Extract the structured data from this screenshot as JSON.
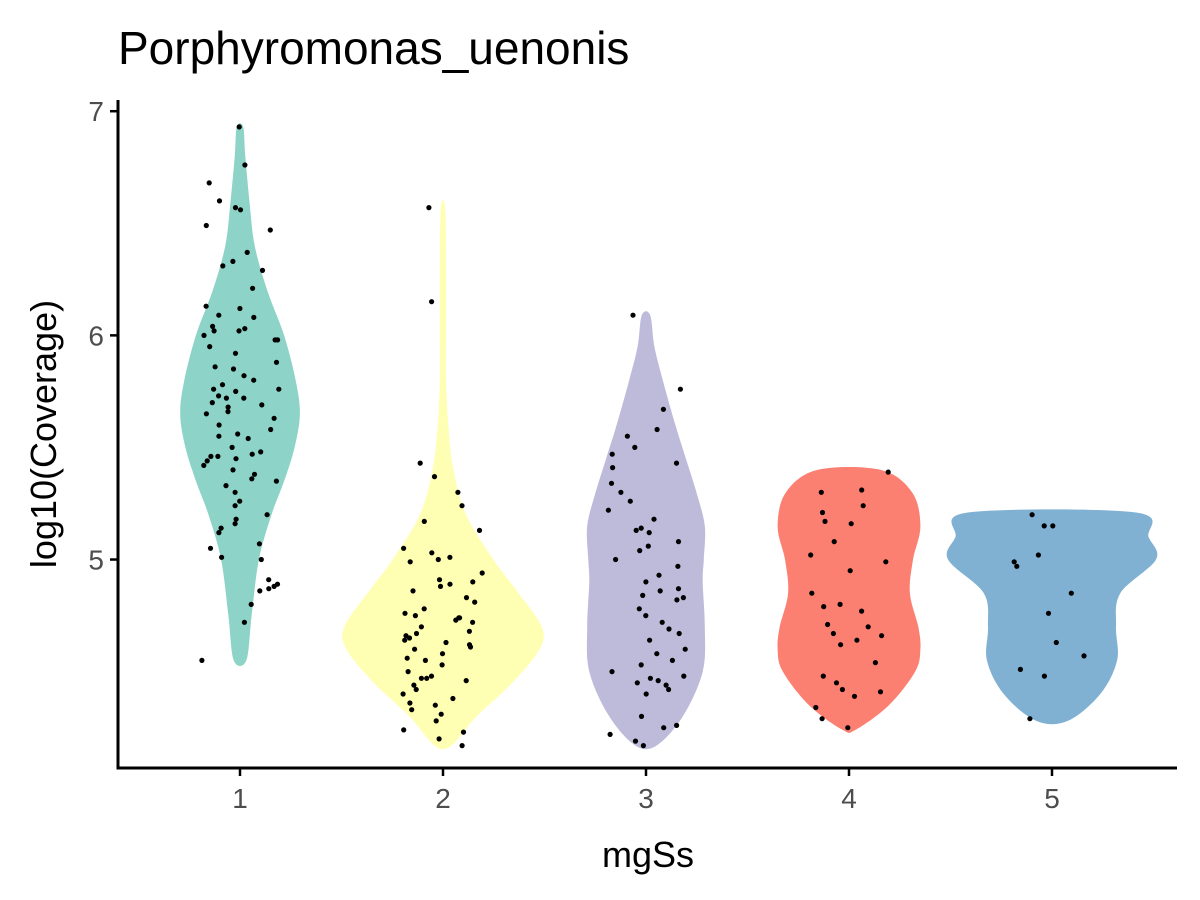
{
  "chart_data": {
    "type": "violin",
    "title": "Porphyromonas_uenonis",
    "xlabel": "mgSs",
    "ylabel": "log10(Coverage)",
    "categories": [
      "1",
      "2",
      "3",
      "4",
      "5"
    ],
    "yticks": [
      5,
      6,
      7
    ],
    "ylim": [
      4.07,
      7.05
    ],
    "grid": false,
    "legend": "none",
    "colors": [
      "#8dd3c7",
      "#ffffb3",
      "#bebada",
      "#fb8072",
      "#80b1d3"
    ],
    "violins": [
      {
        "category": "1",
        "min": 4.55,
        "max": 6.93,
        "profile": [
          [
            4.55,
            0.06
          ],
          [
            4.75,
            0.11
          ],
          [
            5.0,
            0.18
          ],
          [
            5.2,
            0.3
          ],
          [
            5.35,
            0.42
          ],
          [
            5.5,
            0.52
          ],
          [
            5.65,
            0.57
          ],
          [
            5.8,
            0.53
          ],
          [
            6.0,
            0.42
          ],
          [
            6.2,
            0.26
          ],
          [
            6.4,
            0.14
          ],
          [
            6.6,
            0.09
          ],
          [
            6.8,
            0.05
          ],
          [
            6.93,
            0.03
          ]
        ]
      },
      {
        "category": "2",
        "min": 4.17,
        "max": 6.57,
        "profile": [
          [
            4.17,
            0.08
          ],
          [
            4.3,
            0.32
          ],
          [
            4.45,
            0.66
          ],
          [
            4.6,
            0.92
          ],
          [
            4.7,
            0.94
          ],
          [
            4.85,
            0.72
          ],
          [
            5.0,
            0.48
          ],
          [
            5.2,
            0.22
          ],
          [
            5.4,
            0.1
          ],
          [
            5.6,
            0.05
          ],
          [
            5.8,
            0.03
          ],
          [
            6.0,
            0.03
          ],
          [
            6.3,
            0.03
          ],
          [
            6.57,
            0.02
          ]
        ]
      },
      {
        "category": "3",
        "min": 4.17,
        "max": 6.09,
        "profile": [
          [
            4.17,
            0.1
          ],
          [
            4.3,
            0.35
          ],
          [
            4.5,
            0.54
          ],
          [
            4.7,
            0.56
          ],
          [
            4.9,
            0.54
          ],
          [
            5.0,
            0.55
          ],
          [
            5.15,
            0.56
          ],
          [
            5.3,
            0.48
          ],
          [
            5.45,
            0.38
          ],
          [
            5.6,
            0.28
          ],
          [
            5.8,
            0.16
          ],
          [
            5.95,
            0.08
          ],
          [
            6.09,
            0.04
          ]
        ]
      },
      {
        "category": "4",
        "min": 4.24,
        "max": 5.4,
        "profile": [
          [
            4.24,
            0.06
          ],
          [
            4.35,
            0.38
          ],
          [
            4.5,
            0.63
          ],
          [
            4.6,
            0.68
          ],
          [
            4.7,
            0.66
          ],
          [
            4.85,
            0.58
          ],
          [
            5.0,
            0.61
          ],
          [
            5.15,
            0.68
          ],
          [
            5.3,
            0.6
          ],
          [
            5.4,
            0.3
          ]
        ]
      },
      {
        "category": "5",
        "min": 4.28,
        "max": 5.21,
        "profile": [
          [
            4.28,
            0.15
          ],
          [
            4.4,
            0.46
          ],
          [
            4.55,
            0.62
          ],
          [
            4.7,
            0.61
          ],
          [
            4.85,
            0.65
          ],
          [
            5.0,
            0.99
          ],
          [
            5.1,
            0.92
          ],
          [
            5.21,
            0.8
          ]
        ]
      }
    ],
    "points": [
      {
        "category": "1",
        "values": [
          6.93,
          6.76,
          6.68,
          6.6,
          6.57,
          6.56,
          6.49,
          6.47,
          6.37,
          6.33,
          6.31,
          6.29,
          6.21,
          6.13,
          6.12,
          6.09,
          6.08,
          6.04,
          6.03,
          6.02,
          6.02,
          6.0,
          5.98,
          5.98,
          5.95,
          5.92,
          5.88,
          5.86,
          5.85,
          5.82,
          5.8,
          5.78,
          5.76,
          5.76,
          5.75,
          5.73,
          5.72,
          5.72,
          5.7,
          5.69,
          5.68,
          5.66,
          5.65,
          5.63,
          5.6,
          5.58,
          5.56,
          5.55,
          5.54,
          5.5,
          5.48,
          5.47,
          5.46,
          5.46,
          5.45,
          5.44,
          5.42,
          5.4,
          5.38,
          5.36,
          5.35,
          5.33,
          5.3,
          5.26,
          5.24,
          5.2,
          5.18,
          5.16,
          5.14,
          5.12,
          5.07,
          5.05,
          5.01,
          5.0,
          4.91,
          4.89,
          4.88,
          4.87,
          4.86,
          4.8,
          4.72,
          4.55
        ]
      },
      {
        "category": "2",
        "values": [
          6.57,
          6.15,
          5.43,
          5.37,
          5.3,
          5.24,
          5.17,
          5.13,
          5.05,
          5.03,
          5.01,
          5.0,
          4.99,
          4.94,
          4.91,
          4.9,
          4.89,
          4.88,
          4.86,
          4.83,
          4.81,
          4.78,
          4.76,
          4.75,
          4.74,
          4.74,
          4.73,
          4.72,
          4.7,
          4.68,
          4.67,
          4.66,
          4.65,
          4.64,
          4.63,
          4.62,
          4.61,
          4.6,
          4.58,
          4.56,
          4.55,
          4.53,
          4.5,
          4.48,
          4.47,
          4.47,
          4.46,
          4.44,
          4.42,
          4.4,
          4.38,
          4.36,
          4.35,
          4.33,
          4.31,
          4.28,
          4.24,
          4.23,
          4.2,
          4.17
        ]
      },
      {
        "category": "3",
        "values": [
          6.09,
          5.76,
          5.67,
          5.58,
          5.55,
          5.5,
          5.47,
          5.43,
          5.41,
          5.34,
          5.3,
          5.26,
          5.22,
          5.18,
          5.14,
          5.13,
          5.12,
          5.08,
          5.06,
          5.04,
          5.0,
          4.97,
          4.93,
          4.9,
          4.87,
          4.86,
          4.84,
          4.83,
          4.82,
          4.78,
          4.75,
          4.72,
          4.69,
          4.67,
          4.64,
          4.6,
          4.58,
          4.55,
          4.53,
          4.5,
          4.48,
          4.47,
          4.46,
          4.45,
          4.44,
          4.42,
          4.4,
          4.3,
          4.26,
          4.25,
          4.22,
          4.19,
          4.17
        ]
      },
      {
        "category": "4",
        "values": [
          5.39,
          5.31,
          5.3,
          5.24,
          5.21,
          5.17,
          5.16,
          5.08,
          5.02,
          4.99,
          4.95,
          4.85,
          4.8,
          4.79,
          4.77,
          4.71,
          4.7,
          4.67,
          4.66,
          4.64,
          4.62,
          4.54,
          4.48,
          4.45,
          4.42,
          4.41,
          4.39,
          4.34,
          4.29,
          4.25
        ]
      },
      {
        "category": "5",
        "values": [
          5.2,
          5.15,
          5.15,
          5.02,
          4.99,
          4.97,
          4.85,
          4.76,
          4.63,
          4.57,
          4.51,
          4.48,
          4.29
        ]
      }
    ]
  }
}
